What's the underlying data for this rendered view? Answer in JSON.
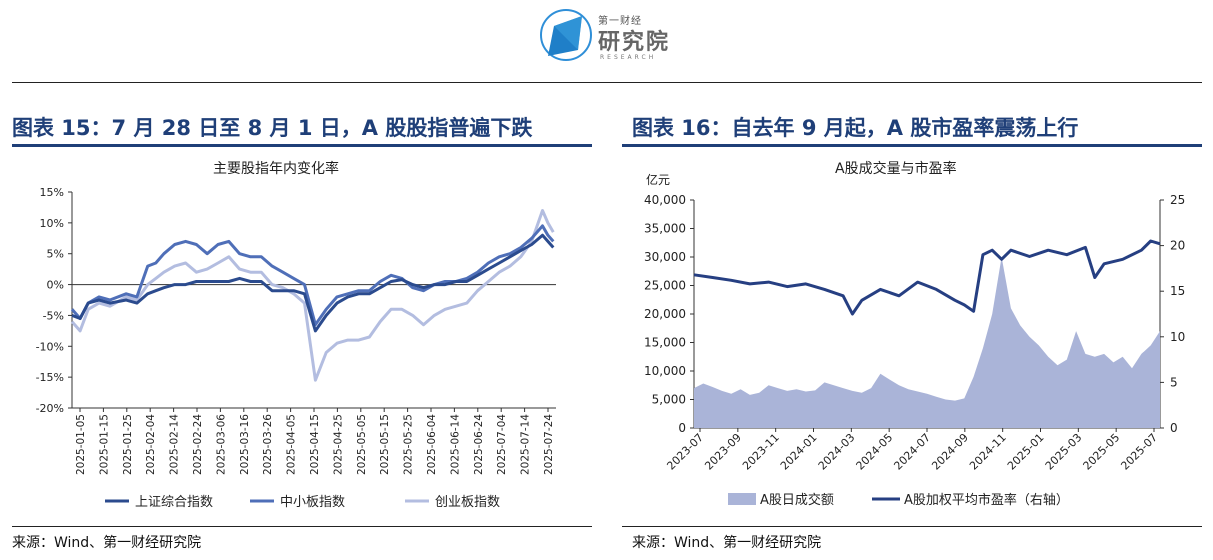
{
  "header": {
    "logo_small": "第一财经",
    "logo_big": "研究院",
    "logo_en": "RESEARCH"
  },
  "left_panel": {
    "figure_title": "图表 15：7 月 28 日至 8 月 1 日，A 股股指普遍下跌",
    "source": "来源：Wind、第一财经研究院"
  },
  "right_panel": {
    "figure_title": "图表 16：自去年 9 月起，A 股市盈率震荡上行",
    "source": "来源：Wind、第一财经研究院"
  },
  "chart_data": [
    {
      "type": "line",
      "title": "主要股指年内变化率",
      "x_ticks": [
        "2025-01-05",
        "2025-01-15",
        "2025-01-25",
        "2025-02-04",
        "2025-02-14",
        "2025-02-24",
        "2025-03-06",
        "2025-03-16",
        "2025-03-26",
        "2025-04-05",
        "2025-04-15",
        "2025-04-25",
        "2025-05-05",
        "2025-05-15",
        "2025-05-25",
        "2025-06-04",
        "2025-06-14",
        "2025-06-24",
        "2025-07-04",
        "2025-07-14",
        "2025-07-24"
      ],
      "y_ticks": [
        "15%",
        "10%",
        "5%",
        "0%",
        "-5%",
        "-10%",
        "-15%",
        "-20%"
      ],
      "ylim": [
        -20,
        15
      ],
      "y_unit": "%",
      "legend_position": "bottom",
      "series": [
        {
          "name": "上证综合指数",
          "color": "#2b4b8e",
          "points": [
            [
              0,
              -5
            ],
            [
              3,
              -5.5
            ],
            [
              6,
              -3
            ],
            [
              10,
              -2.5
            ],
            [
              14,
              -3
            ],
            [
              20,
              -2.5
            ],
            [
              24,
              -3
            ],
            [
              28,
              -1.5
            ],
            [
              31,
              -1
            ],
            [
              34,
              -0.5
            ],
            [
              38,
              0
            ],
            [
              42,
              0
            ],
            [
              46,
              0.5
            ],
            [
              50,
              0.5
            ],
            [
              54,
              0.5
            ],
            [
              58,
              0.5
            ],
            [
              62,
              1
            ],
            [
              66,
              0.5
            ],
            [
              70,
              0.5
            ],
            [
              74,
              -1
            ],
            [
              78,
              -1
            ],
            [
              82,
              -1
            ],
            [
              86,
              -1.5
            ],
            [
              90,
              -7.5
            ],
            [
              94,
              -5
            ],
            [
              98,
              -3
            ],
            [
              102,
              -2
            ],
            [
              106,
              -1.5
            ],
            [
              110,
              -1.5
            ],
            [
              114,
              -0.5
            ],
            [
              118,
              0.5
            ],
            [
              122,
              0.8
            ],
            [
              126,
              0
            ],
            [
              130,
              -0.5
            ],
            [
              134,
              0
            ],
            [
              138,
              0
            ],
            [
              142,
              0.5
            ],
            [
              146,
              0.5
            ],
            [
              150,
              1.5
            ],
            [
              154,
              2.5
            ],
            [
              158,
              3.5
            ],
            [
              162,
              4.5
            ],
            [
              166,
              5.5
            ],
            [
              170,
              6.5
            ],
            [
              174,
              8
            ],
            [
              176,
              7
            ],
            [
              178,
              6
            ]
          ]
        },
        {
          "name": "中小板指数",
          "color": "#4f6fb8",
          "points": [
            [
              0,
              -4
            ],
            [
              3,
              -5.5
            ],
            [
              6,
              -3
            ],
            [
              10,
              -2
            ],
            [
              14,
              -2.5
            ],
            [
              20,
              -1.5
            ],
            [
              24,
              -2
            ],
            [
              28,
              3
            ],
            [
              31,
              3.5
            ],
            [
              34,
              5
            ],
            [
              38,
              6.5
            ],
            [
              42,
              7
            ],
            [
              46,
              6.5
            ],
            [
              50,
              5
            ],
            [
              54,
              6.5
            ],
            [
              58,
              7
            ],
            [
              62,
              5
            ],
            [
              66,
              4.5
            ],
            [
              70,
              4.5
            ],
            [
              74,
              3
            ],
            [
              78,
              2
            ],
            [
              82,
              1
            ],
            [
              86,
              0
            ],
            [
              90,
              -6.5
            ],
            [
              94,
              -4
            ],
            [
              98,
              -2
            ],
            [
              102,
              -1.5
            ],
            [
              106,
              -1
            ],
            [
              110,
              -1
            ],
            [
              114,
              0.5
            ],
            [
              118,
              1.5
            ],
            [
              122,
              1
            ],
            [
              126,
              -0.5
            ],
            [
              130,
              -1
            ],
            [
              134,
              0
            ],
            [
              138,
              0.5
            ],
            [
              142,
              0.5
            ],
            [
              146,
              1
            ],
            [
              150,
              2
            ],
            [
              154,
              3.5
            ],
            [
              158,
              4.5
            ],
            [
              162,
              5
            ],
            [
              166,
              6
            ],
            [
              170,
              7.5
            ],
            [
              174,
              9.5
            ],
            [
              176,
              8
            ],
            [
              178,
              7
            ]
          ]
        },
        {
          "name": "创业板指数",
          "color": "#b3bde0",
          "points": [
            [
              0,
              -6
            ],
            [
              3,
              -7.5
            ],
            [
              6,
              -4
            ],
            [
              10,
              -3
            ],
            [
              14,
              -3.5
            ],
            [
              20,
              -2
            ],
            [
              24,
              -2.5
            ],
            [
              28,
              0
            ],
            [
              31,
              1
            ],
            [
              34,
              2
            ],
            [
              38,
              3
            ],
            [
              42,
              3.5
            ],
            [
              46,
              2
            ],
            [
              50,
              2.5
            ],
            [
              54,
              3.5
            ],
            [
              58,
              4.5
            ],
            [
              62,
              2.5
            ],
            [
              66,
              2
            ],
            [
              70,
              2
            ],
            [
              74,
              0
            ],
            [
              78,
              -0.5
            ],
            [
              82,
              -1.5
            ],
            [
              86,
              -3
            ],
            [
              90,
              -15.5
            ],
            [
              94,
              -11
            ],
            [
              98,
              -9.5
            ],
            [
              102,
              -9
            ],
            [
              106,
              -9
            ],
            [
              110,
              -8.5
            ],
            [
              114,
              -6
            ],
            [
              118,
              -4
            ],
            [
              122,
              -4
            ],
            [
              126,
              -5
            ],
            [
              130,
              -6.5
            ],
            [
              134,
              -5
            ],
            [
              138,
              -4
            ],
            [
              142,
              -3.5
            ],
            [
              146,
              -3
            ],
            [
              150,
              -1
            ],
            [
              154,
              0.5
            ],
            [
              158,
              2
            ],
            [
              162,
              3
            ],
            [
              166,
              4.5
            ],
            [
              170,
              7
            ],
            [
              174,
              12
            ],
            [
              176,
              10
            ],
            [
              178,
              8.5
            ]
          ]
        }
      ]
    },
    {
      "type": "area+line",
      "title": "A股成交量与市盈率",
      "y_left_label": "亿元",
      "x_ticks": [
        "2023-07",
        "2023-09",
        "2023-11",
        "2024-01",
        "2024-03",
        "2024-05",
        "2024-07",
        "2024-09",
        "2024-11",
        "2025-01",
        "2025-03",
        "2025-05",
        "2025-07"
      ],
      "y_left_ticks": [
        "40,000",
        "35,000",
        "30,000",
        "25,000",
        "20,000",
        "15,000",
        "10,000",
        "5,000",
        "0"
      ],
      "y_right_ticks": [
        "25",
        "20",
        "15",
        "10",
        "5",
        "0"
      ],
      "ylim_left": [
        0,
        40000
      ],
      "ylim_right": [
        0,
        25
      ],
      "legend_position": "bottom",
      "series": [
        {
          "name": "A股日成交额",
          "axis": "left",
          "color": "#aab4d8",
          "points": [
            [
              0,
              7000
            ],
            [
              1,
              7800
            ],
            [
              2,
              7200
            ],
            [
              3,
              6500
            ],
            [
              4,
              6000
            ],
            [
              5,
              6800
            ],
            [
              6,
              5800
            ],
            [
              7,
              6200
            ],
            [
              8,
              7500
            ],
            [
              9,
              7000
            ],
            [
              10,
              6500
            ],
            [
              11,
              6800
            ],
            [
              12,
              6400
            ],
            [
              13,
              6600
            ],
            [
              14,
              8000
            ],
            [
              15,
              7500
            ],
            [
              16,
              7000
            ],
            [
              17,
              6500
            ],
            [
              18,
              6200
            ],
            [
              19,
              7000
            ],
            [
              20,
              9500
            ],
            [
              21,
              8500
            ],
            [
              22,
              7500
            ],
            [
              23,
              6800
            ],
            [
              24,
              6400
            ],
            [
              25,
              6000
            ],
            [
              26,
              5500
            ],
            [
              27,
              5000
            ],
            [
              28,
              4800
            ],
            [
              29,
              5200
            ],
            [
              30,
              9000
            ],
            [
              31,
              14000
            ],
            [
              32,
              20000
            ],
            [
              33,
              30000
            ],
            [
              34,
              21000
            ],
            [
              35,
              18000
            ],
            [
              36,
              16000
            ],
            [
              37,
              14500
            ],
            [
              38,
              12500
            ],
            [
              39,
              11000
            ],
            [
              40,
              12000
            ],
            [
              41,
              17000
            ],
            [
              42,
              13000
            ],
            [
              43,
              12500
            ],
            [
              44,
              13000
            ],
            [
              45,
              11500
            ],
            [
              46,
              12500
            ],
            [
              47,
              10500
            ],
            [
              48,
              13000
            ],
            [
              49,
              14500
            ],
            [
              50,
              17000
            ]
          ]
        },
        {
          "name": "A股加权平均市盈率（右轴）",
          "axis": "right",
          "color": "#263f82",
          "points": [
            [
              0,
              16.8
            ],
            [
              2,
              16.5
            ],
            [
              4,
              16.2
            ],
            [
              6,
              15.8
            ],
            [
              8,
              16
            ],
            [
              10,
              15.5
            ],
            [
              12,
              15.8
            ],
            [
              14,
              15.2
            ],
            [
              16,
              14.5
            ],
            [
              17,
              12.5
            ],
            [
              18,
              14
            ],
            [
              20,
              15.2
            ],
            [
              22,
              14.5
            ],
            [
              24,
              16
            ],
            [
              26,
              15.2
            ],
            [
              28,
              14
            ],
            [
              29,
              13.5
            ],
            [
              30,
              12.8
            ],
            [
              31,
              19
            ],
            [
              32,
              19.5
            ],
            [
              33,
              18.5
            ],
            [
              34,
              19.5
            ],
            [
              36,
              18.8
            ],
            [
              38,
              19.5
            ],
            [
              40,
              19
            ],
            [
              42,
              19.8
            ],
            [
              43,
              16.5
            ],
            [
              44,
              18
            ],
            [
              46,
              18.5
            ],
            [
              48,
              19.5
            ],
            [
              49,
              20.5
            ],
            [
              50,
              20.2
            ]
          ]
        }
      ]
    }
  ]
}
